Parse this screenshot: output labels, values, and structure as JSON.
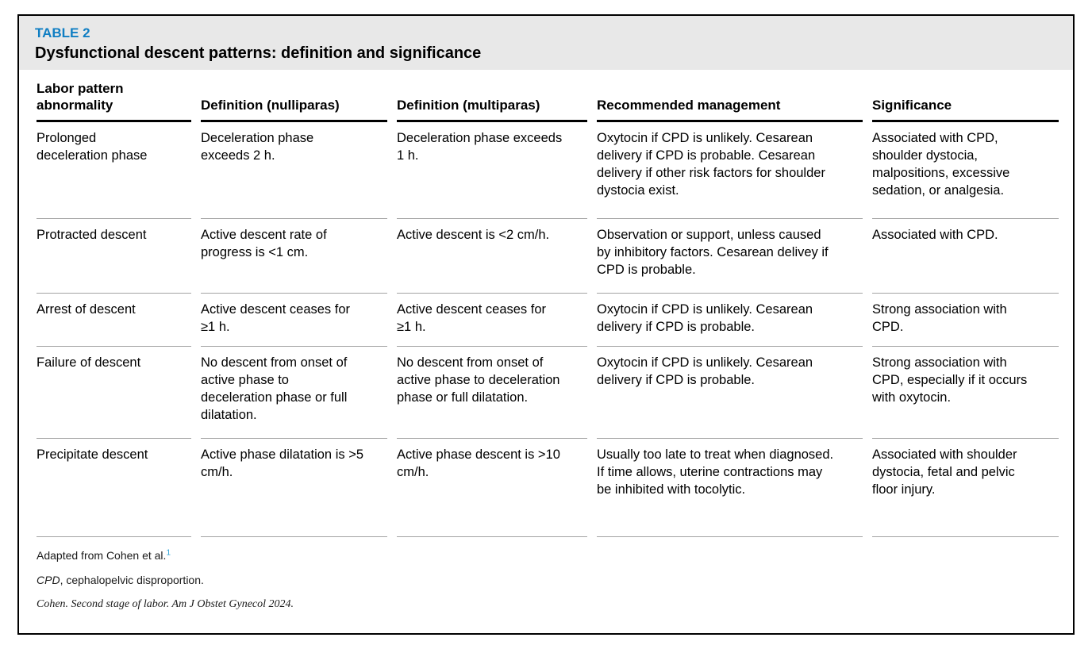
{
  "header": {
    "label": "TABLE 2",
    "title": "Dysfunctional descent patterns: definition and significance"
  },
  "table": {
    "columns": [
      "Labor pattern abnormality",
      "Definition (nulliparas)",
      "Definition (multiparas)",
      "Recommended management",
      "Significance"
    ],
    "rows": [
      {
        "cells": [
          "Prolonged deceleration phase",
          "Deceleration phase exceeds 2 h.",
          "Deceleration phase exceeds 1 h.",
          "Oxytocin if CPD is unlikely. Cesarean delivery if CPD is probable. Cesarean delivery if other risk factors for shoulder dystocia exist.",
          "Associated with CPD, shoulder dystocia, malpositions, excessive sedation, or analgesia."
        ]
      },
      {
        "cells": [
          "Protracted descent",
          "Active descent rate of progress is <1 cm.",
          "Active descent is <2 cm/h.",
          "Observation or support, unless caused by inhibitory factors. Cesarean delivey if CPD is probable.",
          "Associated with CPD."
        ]
      },
      {
        "cells": [
          "Arrest of descent",
          "Active descent ceases for ≥1 h.",
          "Active descent ceases for ≥1 h.",
          "Oxytocin if CPD is unlikely. Cesarean delivery if CPD is probable.",
          "Strong association with CPD."
        ]
      },
      {
        "cells": [
          "Failure of descent",
          "No descent from onset of active phase to deceleration phase or full dilatation.",
          "No descent from onset of active phase to deceleration phase or full dilatation.",
          "Oxytocin if CPD is unlikely. Cesarean delivery if CPD is probable.",
          "Strong association with CPD, especially if it occurs with oxytocin."
        ]
      },
      {
        "cells": [
          "Precipitate descent",
          "Active phase dilatation is >5 cm/h.",
          "Active phase descent is >10 cm/h.",
          "Usually too late to treat when diagnosed. If time allows, uterine contractions may be inhibited with tocolytic.",
          "Associated with shoulder dystocia, fetal and pelvic floor injury."
        ]
      }
    ]
  },
  "footnotes": {
    "adapted_text": "Adapted from Cohen et al.",
    "adapted_ref": "1",
    "abbr_term": "CPD",
    "abbr_rest": ", cephalopelvic disproportion.",
    "citation": "Cohen. Second stage of labor. Am J Obstet Gynecol 2024."
  },
  "colors": {
    "accent_blue": "#0f7ec3",
    "reference_blue": "#2aa3d8",
    "band_gray": "#e8e8e8"
  }
}
